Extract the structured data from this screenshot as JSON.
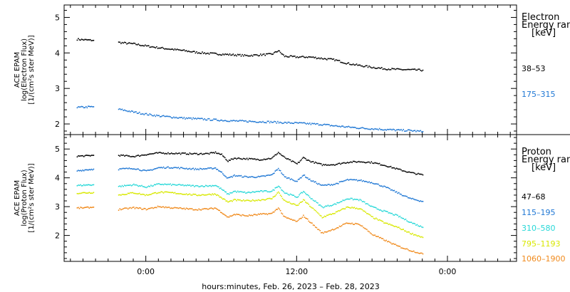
{
  "chart_data": [
    {
      "type": "scatter",
      "panel": "electron",
      "ylabel": [
        "ACE EPAM",
        "log(Electron Flux)",
        "[1/(cm²s ster MeV)]"
      ],
      "ylim": [
        1.7,
        5.35
      ],
      "yticks": [
        2,
        3,
        4,
        5
      ],
      "legend_title": [
        "Electron",
        "Energy ran",
        "[keV]"
      ],
      "series": [
        {
          "name": "38–53",
          "color": "#000000",
          "segments": [
            [
              [
                -5.5,
                4.4
              ],
              [
                -4.8,
                4.38
              ],
              [
                -4.2,
                4.37
              ]
            ],
            [
              [
                -2.2,
                4.31
              ],
              [
                -1,
                4.27
              ],
              [
                0,
                4.21
              ],
              [
                1,
                4.16
              ],
              [
                2,
                4.12
              ],
              [
                3,
                4.08
              ],
              [
                4,
                4.03
              ],
              [
                5,
                4.0
              ],
              [
                6,
                3.98
              ],
              [
                7,
                3.96
              ],
              [
                8,
                3.94
              ],
              [
                9,
                3.96
              ],
              [
                10,
                3.98
              ],
              [
                10.5,
                4.08
              ],
              [
                11,
                3.92
              ],
              [
                12,
                3.9
              ],
              [
                13,
                3.9
              ],
              [
                14,
                3.86
              ],
              [
                15,
                3.82
              ],
              [
                16,
                3.72
              ],
              [
                17,
                3.66
              ],
              [
                18,
                3.61
              ],
              [
                19,
                3.57
              ],
              [
                20,
                3.55
              ],
              [
                21,
                3.54
              ],
              [
                22,
                3.53
              ]
            ]
          ]
        },
        {
          "name": "175–315",
          "color": "#1f77d4",
          "segments": [
            [
              [
                -5.5,
                2.48
              ],
              [
                -4.8,
                2.49
              ],
              [
                -4.2,
                2.5
              ]
            ],
            [
              [
                -2.2,
                2.43
              ],
              [
                -1,
                2.35
              ],
              [
                0,
                2.29
              ],
              [
                1,
                2.24
              ],
              [
                2,
                2.21
              ],
              [
                3,
                2.18
              ],
              [
                4,
                2.16
              ],
              [
                5,
                2.14
              ],
              [
                6,
                2.12
              ],
              [
                7,
                2.1
              ],
              [
                8,
                2.09
              ],
              [
                9,
                2.08
              ],
              [
                10,
                2.07
              ],
              [
                11,
                2.05
              ],
              [
                12,
                2.04
              ],
              [
                13,
                2.02
              ],
              [
                14,
                2.0
              ],
              [
                15,
                1.96
              ],
              [
                16,
                1.93
              ],
              [
                17,
                1.9
              ],
              [
                18,
                1.88
              ],
              [
                19,
                1.86
              ],
              [
                20,
                1.84
              ],
              [
                21,
                1.83
              ],
              [
                22,
                1.8
              ]
            ]
          ]
        }
      ]
    },
    {
      "type": "scatter",
      "panel": "proton",
      "ylabel": [
        "ACE EPAM",
        "log(Proton Flux)",
        "[1/(cm²s ster MeV)]"
      ],
      "ylim": [
        1.1,
        5.5
      ],
      "yticks": [
        2,
        3,
        4,
        5
      ],
      "legend_title": [
        "Proton",
        "Energy ran",
        "[keV]"
      ],
      "series": [
        {
          "name": "47–68",
          "color": "#000000",
          "segments": [
            [
              [
                -5.5,
                4.77
              ],
              [
                -4.8,
                4.78
              ],
              [
                -4.2,
                4.8
              ]
            ],
            [
              [
                -2.2,
                4.8
              ],
              [
                -1,
                4.76
              ],
              [
                0,
                4.83
              ],
              [
                1,
                4.88
              ],
              [
                2,
                4.87
              ],
              [
                3,
                4.86
              ],
              [
                4,
                4.85
              ],
              [
                5,
                4.86
              ],
              [
                5.5,
                4.9
              ],
              [
                6,
                4.82
              ],
              [
                6.5,
                4.6
              ],
              [
                7,
                4.7
              ],
              [
                8,
                4.68
              ],
              [
                9,
                4.65
              ],
              [
                10,
                4.7
              ],
              [
                10.5,
                4.9
              ],
              [
                11,
                4.72
              ],
              [
                12,
                4.5
              ],
              [
                12.5,
                4.72
              ],
              [
                13,
                4.6
              ],
              [
                14,
                4.47
              ],
              [
                15,
                4.48
              ],
              [
                16,
                4.56
              ],
              [
                17,
                4.58
              ],
              [
                18,
                4.55
              ],
              [
                19,
                4.45
              ],
              [
                20,
                4.32
              ],
              [
                21,
                4.2
              ],
              [
                22,
                4.12
              ]
            ]
          ]
        },
        {
          "name": "115–195",
          "color": "#1f77d4",
          "segments": [
            [
              [
                -5.5,
                4.26
              ],
              [
                -4.8,
                4.3
              ],
              [
                -4.2,
                4.32
              ]
            ],
            [
              [
                -2.2,
                4.32
              ],
              [
                -1,
                4.35
              ],
              [
                0,
                4.25
              ],
              [
                1,
                4.37
              ],
              [
                2,
                4.38
              ],
              [
                3,
                4.35
              ],
              [
                4,
                4.32
              ],
              [
                5,
                4.34
              ],
              [
                5.5,
                4.36
              ],
              [
                6,
                4.2
              ],
              [
                6.5,
                4.0
              ],
              [
                7,
                4.1
              ],
              [
                8,
                4.05
              ],
              [
                9,
                4.05
              ],
              [
                10,
                4.12
              ],
              [
                10.5,
                4.35
              ],
              [
                11,
                4.05
              ],
              [
                12,
                3.9
              ],
              [
                12.5,
                4.12
              ],
              [
                13,
                3.95
              ],
              [
                14,
                3.75
              ],
              [
                15,
                3.8
              ],
              [
                16,
                3.95
              ],
              [
                17,
                3.93
              ],
              [
                18,
                3.85
              ],
              [
                19,
                3.7
              ],
              [
                20,
                3.5
              ],
              [
                21,
                3.3
              ],
              [
                22,
                3.2
              ]
            ]
          ]
        },
        {
          "name": "310–580",
          "color": "#28d8d8",
          "segments": [
            [
              [
                -5.5,
                3.75
              ],
              [
                -4.8,
                3.77
              ],
              [
                -4.2,
                3.78
              ]
            ],
            [
              [
                -2.2,
                3.72
              ],
              [
                -1,
                3.78
              ],
              [
                0,
                3.7
              ],
              [
                1,
                3.8
              ],
              [
                2,
                3.78
              ],
              [
                3,
                3.76
              ],
              [
                4,
                3.73
              ],
              [
                5,
                3.74
              ],
              [
                5.5,
                3.76
              ],
              [
                6,
                3.62
              ],
              [
                6.5,
                3.45
              ],
              [
                7,
                3.55
              ],
              [
                8,
                3.5
              ],
              [
                9,
                3.55
              ],
              [
                10,
                3.55
              ],
              [
                10.5,
                3.75
              ],
              [
                11,
                3.5
              ],
              [
                12,
                3.35
              ],
              [
                12.5,
                3.55
              ],
              [
                13,
                3.35
              ],
              [
                14,
                3.0
              ],
              [
                15,
                3.1
              ],
              [
                16,
                3.3
              ],
              [
                17,
                3.25
              ],
              [
                18,
                3.0
              ],
              [
                19,
                2.85
              ],
              [
                20,
                2.7
              ],
              [
                21,
                2.48
              ],
              [
                22,
                2.3
              ]
            ]
          ]
        },
        {
          "name": "795–1193",
          "color": "#d8e800",
          "segments": [
            [
              [
                -5.5,
                3.49
              ],
              [
                -4.8,
                3.5
              ],
              [
                -4.2,
                3.51
              ]
            ],
            [
              [
                -2.2,
                3.42
              ],
              [
                -1,
                3.5
              ],
              [
                0,
                3.42
              ],
              [
                1,
                3.52
              ],
              [
                2,
                3.5
              ],
              [
                3,
                3.46
              ],
              [
                4,
                3.42
              ],
              [
                5,
                3.44
              ],
              [
                5.5,
                3.46
              ],
              [
                6,
                3.32
              ],
              [
                6.5,
                3.18
              ],
              [
                7,
                3.25
              ],
              [
                8,
                3.22
              ],
              [
                9,
                3.25
              ],
              [
                10,
                3.3
              ],
              [
                10.5,
                3.52
              ],
              [
                11,
                3.22
              ],
              [
                12,
                3.05
              ],
              [
                12.5,
                3.25
              ],
              [
                13,
                3.05
              ],
              [
                14,
                2.65
              ],
              [
                15,
                2.8
              ],
              [
                16,
                3.0
              ],
              [
                17,
                2.95
              ],
              [
                18,
                2.65
              ],
              [
                19,
                2.45
              ],
              [
                20,
                2.3
              ],
              [
                21,
                2.1
              ],
              [
                22,
                1.95
              ]
            ]
          ]
        },
        {
          "name": "1060–1900",
          "color": "#f08a1c",
          "segments": [
            [
              [
                -5.5,
                2.97
              ],
              [
                -4.8,
                2.98
              ],
              [
                -4.2,
                3.0
              ]
            ],
            [
              [
                -2.2,
                2.92
              ],
              [
                -1,
                2.98
              ],
              [
                0,
                2.93
              ],
              [
                1,
                3.02
              ],
              [
                2,
                2.98
              ],
              [
                3,
                2.95
              ],
              [
                4,
                2.92
              ],
              [
                5,
                2.94
              ],
              [
                5.5,
                2.97
              ],
              [
                6,
                2.82
              ],
              [
                6.5,
                2.65
              ],
              [
                7,
                2.75
              ],
              [
                8,
                2.7
              ],
              [
                9,
                2.75
              ],
              [
                10,
                2.78
              ],
              [
                10.5,
                2.98
              ],
              [
                11,
                2.65
              ],
              [
                12,
                2.5
              ],
              [
                12.5,
                2.7
              ],
              [
                13,
                2.5
              ],
              [
                14,
                2.1
              ],
              [
                15,
                2.25
              ],
              [
                16,
                2.45
              ],
              [
                17,
                2.4
              ],
              [
                18,
                2.05
              ],
              [
                19,
                1.85
              ],
              [
                20,
                1.65
              ],
              [
                21,
                1.5
              ],
              [
                22,
                1.38
              ]
            ]
          ]
        }
      ]
    }
  ],
  "xaxis": {
    "xlim": [
      -6.5,
      29.5
    ],
    "unit": "hours relative to Feb. 27, 2023 0:00",
    "ticks": [
      {
        "x": 0,
        "label": "0:00"
      },
      {
        "x": 12,
        "label": "12:00"
      },
      {
        "x": 24,
        "label": "0:00"
      }
    ],
    "minor_step": 1,
    "label": "hours:minutes, Feb. 26, 2023 – Feb. 28, 2023"
  }
}
